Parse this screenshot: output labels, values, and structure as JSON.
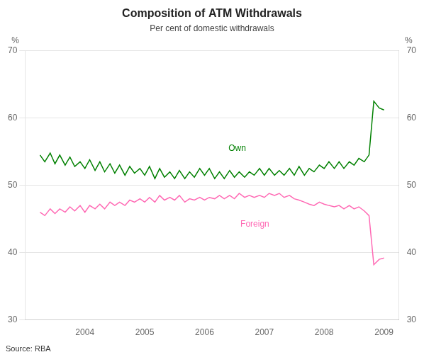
{
  "chart_data": {
    "type": "line",
    "title": "Composition of ATM Withdrawals",
    "subtitle": "Per cent of domestic withdrawals",
    "source": "Source: RBA",
    "ylabel": "%",
    "y2label": "%",
    "x": [
      2003.25,
      2003.33,
      2003.42,
      2003.5,
      2003.58,
      2003.67,
      2003.75,
      2003.83,
      2003.92,
      2004.0,
      2004.08,
      2004.17,
      2004.25,
      2004.33,
      2004.42,
      2004.5,
      2004.58,
      2004.67,
      2004.75,
      2004.83,
      2004.92,
      2005.0,
      2005.08,
      2005.17,
      2005.25,
      2005.33,
      2005.42,
      2005.5,
      2005.58,
      2005.67,
      2005.75,
      2005.83,
      2005.92,
      2006.0,
      2006.08,
      2006.17,
      2006.25,
      2006.33,
      2006.42,
      2006.5,
      2006.58,
      2006.67,
      2006.75,
      2006.83,
      2006.92,
      2007.0,
      2007.08,
      2007.17,
      2007.25,
      2007.33,
      2007.42,
      2007.5,
      2007.58,
      2007.67,
      2007.75,
      2007.83,
      2007.92,
      2008.0,
      2008.08,
      2008.17,
      2008.25,
      2008.33,
      2008.42,
      2008.5,
      2008.58,
      2008.67,
      2008.75,
      2008.83,
      2008.92,
      2009.0
    ],
    "series": [
      {
        "name": "Own",
        "color": "#008000",
        "values": [
          54.5,
          53.5,
          54.8,
          53.2,
          54.5,
          53.0,
          54.2,
          52.8,
          53.5,
          52.5,
          53.8,
          52.2,
          53.5,
          52.0,
          53.2,
          51.8,
          53.0,
          51.5,
          52.8,
          51.8,
          52.5,
          51.5,
          52.8,
          51.0,
          52.5,
          51.2,
          52.0,
          51.0,
          52.2,
          51.0,
          52.0,
          51.2,
          52.5,
          51.5,
          52.5,
          51.0,
          52.0,
          51.0,
          52.2,
          51.2,
          52.0,
          51.2,
          52.0,
          51.5,
          52.5,
          51.5,
          52.5,
          51.5,
          52.2,
          51.5,
          52.5,
          51.5,
          52.8,
          51.5,
          52.5,
          52.0,
          53.0,
          52.5,
          53.5,
          52.5,
          53.5,
          52.5,
          53.5,
          53.0,
          54.0,
          53.5,
          54.5,
          62.5,
          61.5,
          61.2
        ]
      },
      {
        "name": "Foreign",
        "color": "#ff69b4",
        "values": [
          46.0,
          45.5,
          46.5,
          45.8,
          46.5,
          46.0,
          46.8,
          46.2,
          47.0,
          46.0,
          47.0,
          46.5,
          47.2,
          46.5,
          47.5,
          47.0,
          47.5,
          47.0,
          47.8,
          47.5,
          48.0,
          47.5,
          48.2,
          47.5,
          48.5,
          47.8,
          48.2,
          47.8,
          48.5,
          47.5,
          48.0,
          47.8,
          48.2,
          47.8,
          48.2,
          48.0,
          48.5,
          48.0,
          48.5,
          48.0,
          48.8,
          48.2,
          48.5,
          48.2,
          48.5,
          48.2,
          48.8,
          48.5,
          48.8,
          48.2,
          48.5,
          48.0,
          47.8,
          47.5,
          47.2,
          47.0,
          47.5,
          47.2,
          47.0,
          46.8,
          47.0,
          46.5,
          47.0,
          46.5,
          46.8,
          46.2,
          45.5,
          38.2,
          39.0,
          39.2
        ]
      }
    ],
    "annotations": [
      {
        "text": "Own",
        "x": 2006.4,
        "y": 55.5,
        "color": "#008000"
      },
      {
        "text": "Foreign",
        "x": 2006.6,
        "y": 44.2,
        "color": "#ff69b4"
      }
    ],
    "xlim": [
      2003.0,
      2009.25
    ],
    "xticks": [
      2004,
      2005,
      2006,
      2007,
      2008,
      2009
    ],
    "ylim": [
      30,
      70
    ],
    "yticks": [
      30,
      40,
      50,
      60,
      70
    ],
    "y2lim": [
      30,
      70
    ],
    "y2ticks": [
      30,
      40,
      50,
      60,
      70
    ],
    "grid": "y"
  }
}
